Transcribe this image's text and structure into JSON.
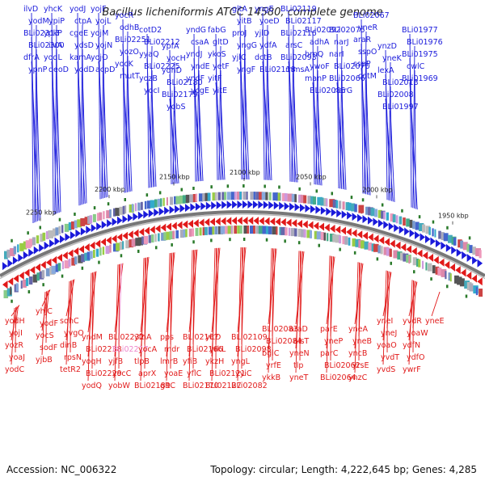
{
  "title": "Bacillus licheniformis ATCC 14580, complete genome",
  "footer": {
    "accession": "Accession: NC_006322",
    "summary": "Topology: circular; Length: 4,222,645 bp; Genes: 4,285"
  },
  "colors": {
    "forward": "#1a1adb",
    "reverse": "#e11a1a",
    "highlight": "#ee88cc",
    "backbone": "#777777"
  },
  "kbp_ticks": [
    "2250 kbp",
    "2200 kbp",
    "2150 kbp",
    "2100 kbp",
    "2050 kbp",
    "2000 kbp",
    "1950 kbp"
  ],
  "forward_genes": [
    "ilvD",
    "yodM",
    "BLi02313",
    "BLi02300",
    "dfrA",
    "ypnP",
    "yhcK",
    "ypiP",
    "ypkP",
    "ilvA",
    "yodL",
    "deoD",
    "yodJ",
    "ctpA",
    "cgeE",
    "ydsD",
    "kamA",
    "yodD",
    "yojF",
    "yojL",
    "yojM",
    "yojN",
    "yojO",
    "acpD",
    "yocR",
    "odhB",
    "BLi02251",
    "yozO",
    "yocK",
    "mutT",
    "cotD2",
    "BLi02212",
    "yyaQ",
    "BLi02225",
    "yozB",
    "yocI",
    "ypfA",
    "yocH",
    "ydnD",
    "BLi02180",
    "BLi02179",
    "yobS",
    "yndG",
    "csaA",
    "yndJ",
    "yndE",
    "yndF",
    "ycgE",
    "fabG",
    "gltD",
    "ykoS",
    "yetF",
    "yitF",
    "yitE",
    "gltA",
    "yitB",
    "proJ",
    "yngG",
    "yjlC",
    "yngF",
    "yngE",
    "yoeD",
    "yjlD",
    "ydfA",
    "dctB",
    "BLi02118",
    "BLi02119",
    "BLi02117",
    "BLi02116",
    "arsC",
    "BLi02093",
    "mmsA",
    "BLi02092",
    "adhA",
    "brnQ",
    "ywoF",
    "manP",
    "BLi02085",
    "BLi02075",
    "narJ",
    "narI",
    "BLi02070",
    "BLi02066",
    "narG",
    "BLi02067",
    "yneR",
    "araR",
    "sspO",
    "sspP",
    "cotM",
    "ynzD",
    "yneK",
    "lexA",
    "BLi02013",
    "BLi02008",
    "BLi01997",
    "BLi01977",
    "BLi01976",
    "BLi01975",
    "cwlC",
    "BLi01969"
  ],
  "reverse_genes": [
    "yodH",
    "yojI",
    "yozR",
    "yoaJ",
    "yodC",
    "yhjC",
    "yodF",
    "yocS",
    "sodF",
    "yjbB",
    "sqhC",
    "yvgO",
    "dinB",
    "rpsN",
    "tetR2",
    "yndM",
    "BLi02238",
    "yoqH",
    "BLi02229",
    "yodQ",
    "BLi02232",
    "BLi02217",
    "yjfB",
    "yocC",
    "yobW",
    "yfnA",
    "yocA",
    "tlpB",
    "aprX",
    "BLi02189",
    "pps",
    "mdr",
    "lmrB",
    "yoaE",
    "gltC",
    "BLi02167",
    "BLi02166",
    "yfiB",
    "yflC",
    "BLi02170",
    "yitD",
    "yrkL",
    "ykzH",
    "BLi02121",
    "BLi02127",
    "BLi02109",
    "BLi02098",
    "yngL",
    "yyiC",
    "BLi02082",
    "BLi02083",
    "BLi02084",
    "bglC",
    "yrfE",
    "ykkB",
    "araD",
    "alsT",
    "yneN",
    "tlp",
    "yneT",
    "parE",
    "yneP",
    "parC",
    "BLi02062",
    "BLi02064",
    "yneA",
    "yneB",
    "yncB",
    "yrsE",
    "ynzC",
    "yneI",
    "yneJ",
    "yoaO",
    "yvdT",
    "yvdS",
    "yvdR",
    "yoaW",
    "ydfN",
    "ydfO",
    "ywrF",
    "yneE"
  ],
  "highlighted_genes": [
    "BLi02217"
  ]
}
